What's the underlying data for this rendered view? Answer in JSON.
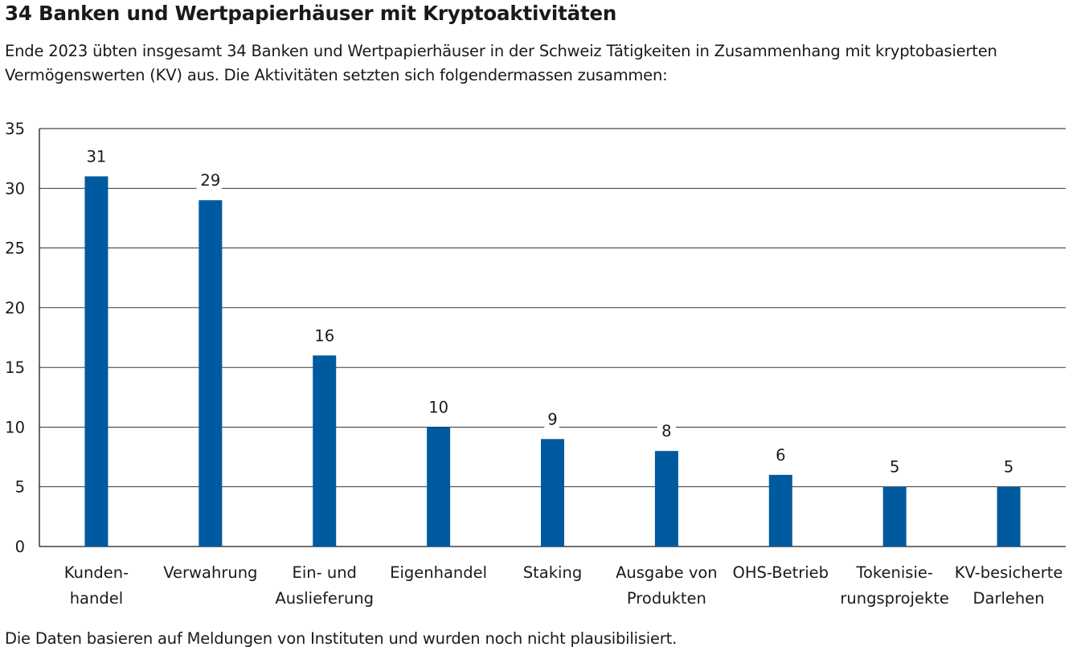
{
  "header": {
    "title": "34 Banken und Wertpapierhäuser mit Kryptoaktivitäten",
    "subtitle": "Ende 2023 übten insgesamt 34 Banken und Wertpapierhäuser in der Schweiz Tätigkeiten in Zusammenhang mit kryptobasierten Vermögenswerten (KV) aus. Die Aktivitäten setzten sich folgendermassen zusammen:"
  },
  "footnote": "Die Daten basieren auf Meldungen von Instituten und wurden noch nicht plausibilisiert.",
  "chart_data": {
    "type": "bar",
    "title": "34 Banken und Wertpapierhäuser mit Kryptoaktivitäten",
    "xlabel": "",
    "ylabel": "",
    "ylim": [
      0,
      35
    ],
    "yticks": [
      0,
      5,
      10,
      15,
      20,
      25,
      30,
      35
    ],
    "grid": true,
    "bar_color": "#005aa0",
    "categories": [
      [
        "Kunden-",
        "handel"
      ],
      [
        "Verwahrung"
      ],
      [
        "Ein- und",
        "Auslieferung"
      ],
      [
        "Eigenhandel"
      ],
      [
        "Staking"
      ],
      [
        "Ausgabe von",
        "Produkten"
      ],
      [
        "OHS-Betrieb"
      ],
      [
        "Tokenisie-",
        "rungsprojekte"
      ],
      [
        "KV-besicherte",
        "Darlehen"
      ]
    ],
    "values": [
      31,
      29,
      16,
      10,
      9,
      8,
      6,
      5,
      5
    ]
  }
}
